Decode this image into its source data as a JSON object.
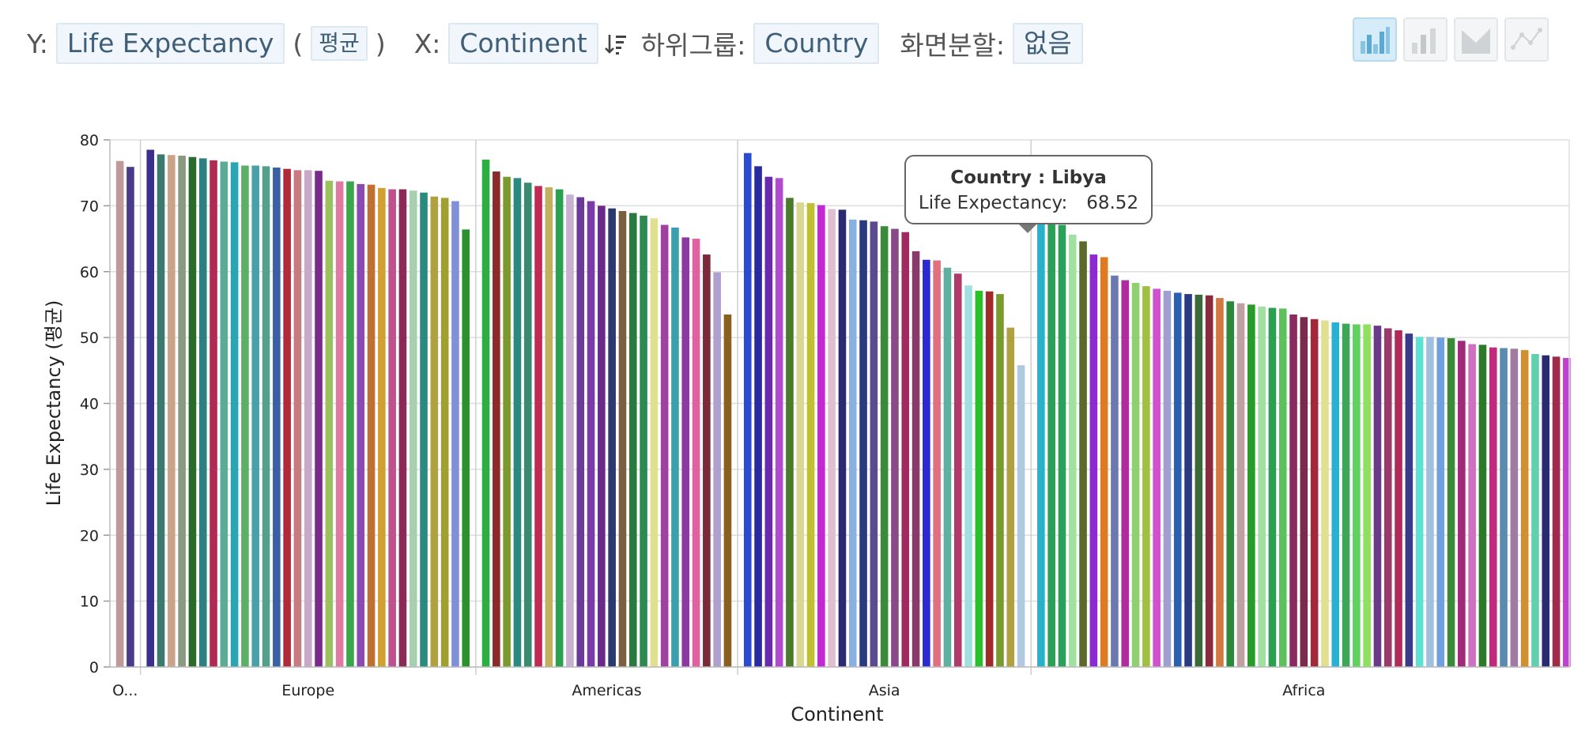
{
  "toolbar": {
    "y_label": "Y:",
    "y_field": "Life Expectancy",
    "paren_open": "(",
    "aggregation": "평균",
    "paren_close": ")",
    "x_label": "X:",
    "x_field": "Continent",
    "subgroup_label": "하위그룹:",
    "subgroup_field": "Country",
    "split_label": "화면분할:",
    "split_value": "없음",
    "chart_types": [
      "bar-chart-icon",
      "grouped-bar-icon",
      "area-chart-icon",
      "line-chart-icon"
    ]
  },
  "tooltip": {
    "title": "Country : Libya",
    "metric": "Life Expectancy:",
    "value": "68.52"
  },
  "chart_data": {
    "type": "bar",
    "xlabel": "Continent",
    "ylabel": "Life Expectancy (평균)",
    "ylim": [
      0,
      80
    ],
    "yticks": [
      0,
      10,
      20,
      30,
      40,
      50,
      60,
      70,
      80
    ],
    "grid": true,
    "hovered": {
      "group": 4,
      "index": 0,
      "name": "Libya",
      "value": 68.52
    },
    "groups": [
      {
        "category": "O...",
        "values": [
          76.8,
          75.9
        ],
        "colors": [
          "#c09a9a",
          "#4a3a8a"
        ]
      },
      {
        "category": "Europe",
        "values": [
          78.5,
          77.8,
          77.7,
          77.6,
          77.4,
          77.2,
          76.9,
          76.7,
          76.6,
          76.1,
          76.1,
          76.0,
          75.8,
          75.6,
          75.4,
          75.4,
          75.3,
          73.8,
          73.7,
          73.7,
          73.3,
          73.2,
          72.7,
          72.5,
          72.5,
          72.3,
          72.0,
          71.4,
          71.2,
          70.7,
          66.4
        ],
        "colors": [
          "#3a2f8c",
          "#3c7a70",
          "#c9a38a",
          "#8a9a80",
          "#2a6a2a",
          "#2e7f7f",
          "#b02a55",
          "#5bab96",
          "#2aa5b4",
          "#5ab065",
          "#4aa0a8",
          "#55a08c",
          "#3a5fa8",
          "#b02a3a",
          "#c87a80",
          "#c8a8c8",
          "#7a2a8a",
          "#9ac060",
          "#e07aa0",
          "#3aa84a",
          "#8a4ab0",
          "#c07030",
          "#d0a030",
          "#c05090",
          "#8a2a55",
          "#a8d0b0",
          "#2a8a80",
          "#b0a040",
          "#a0a030",
          "#8090d8",
          "#2a9030"
        ]
      },
      {
        "category": "Americas",
        "values": [
          77.0,
          75.2,
          74.4,
          74.2,
          73.5,
          73.0,
          72.8,
          72.5,
          71.7,
          71.3,
          70.7,
          70.0,
          69.6,
          69.2,
          68.9,
          68.5,
          68.1,
          67.1,
          66.7,
          65.2,
          65.0,
          62.6,
          59.9,
          53.5
        ],
        "colors": [
          "#2ab040",
          "#8a2a2a",
          "#7a9a30",
          "#2a8a80",
          "#3a8a70",
          "#c02a55",
          "#c0b060",
          "#2aa050",
          "#c8b0d0",
          "#6a3a9a",
          "#7a3aa8",
          "#6a2a8a",
          "#2a3a70",
          "#7a6040",
          "#2a7a40",
          "#2a8a50",
          "#e0e090",
          "#a040a0",
          "#3aa0b0",
          "#8a3aa0",
          "#e060a0",
          "#7a2a3a",
          "#b0a0d0",
          "#8a6020"
        ]
      },
      {
        "category": "Asia",
        "values": [
          78.0,
          76.0,
          74.4,
          74.2,
          71.2,
          70.5,
          70.4,
          70.1,
          69.5,
          69.4,
          67.9,
          67.8,
          67.6,
          66.9,
          66.5,
          66.0,
          63.1,
          61.8,
          61.7,
          60.6,
          59.7,
          57.9,
          57.1,
          57.0,
          56.6,
          51.5,
          45.8
        ],
        "colors": [
          "#2a4ad0",
          "#2a2aa0",
          "#6a2ab0",
          "#b04ad0",
          "#4a7a2a",
          "#d8d890",
          "#c0c030",
          "#c02ad0",
          "#e0c0d0",
          "#2a2a70",
          "#8ab0e0",
          "#2a3a80",
          "#5a4a90",
          "#3a8a3a",
          "#8a4a8a",
          "#a02a60",
          "#8a3a6a",
          "#2a2ad0",
          "#e07080",
          "#60b0a0",
          "#b03a6a",
          "#a0e0e0",
          "#2ac02a",
          "#a02a2a",
          "#7a9a30",
          "#b0a040",
          "#b0c8e0"
        ]
      },
      {
        "category": "Africa",
        "values": [
          68.52,
          67.5,
          67.1,
          65.6,
          64.6,
          62.6,
          62.2,
          59.4,
          58.7,
          58.3,
          57.8,
          57.4,
          57.1,
          56.8,
          56.6,
          56.5,
          56.4,
          56.0,
          55.5,
          55.2,
          55.0,
          54.7,
          54.5,
          54.4,
          53.5,
          53.1,
          52.8,
          52.6,
          52.3,
          52.1,
          52.0,
          52.0,
          51.8,
          51.4,
          51.1,
          50.6,
          50.1,
          50.1,
          50.0,
          49.9,
          49.5,
          49.0,
          48.9,
          48.5,
          48.4,
          48.3,
          48.1,
          47.5,
          47.3,
          47.1,
          46.9
        ],
        "colors": [
          "#2ab0c8",
          "#2aa058",
          "#2aa058",
          "#a0e0a0",
          "#5a6a2a",
          "#8a2ad0",
          "#e07a20",
          "#6a7ab0",
          "#b02aa0",
          "#90d070",
          "#a0c040",
          "#d050d0",
          "#a0a0d0",
          "#2a60b0",
          "#2a3a80",
          "#3a6a3a",
          "#8a2a3a",
          "#d07a40",
          "#2a8a3a",
          "#c0a0a0",
          "#2a9a2a",
          "#a0e0a0",
          "#2aa050",
          "#60c060",
          "#8a2a60",
          "#7a2a4a",
          "#a02a3a",
          "#e0e090",
          "#2ab0d0",
          "#3aa858",
          "#60d060",
          "#90e060",
          "#6a3a8a",
          "#9a3a6a",
          "#b02a5a",
          "#3a3a8a",
          "#60e0d0",
          "#a0c0e0",
          "#70a0e0",
          "#3a8a3a",
          "#a02a7a",
          "#d070c0",
          "#2a7a2a",
          "#c02a7a",
          "#5a8ab0",
          "#a07aa0",
          "#d09030",
          "#60d0b0",
          "#2a2a70",
          "#a02a4a",
          "#c040d0"
        ]
      }
    ]
  }
}
